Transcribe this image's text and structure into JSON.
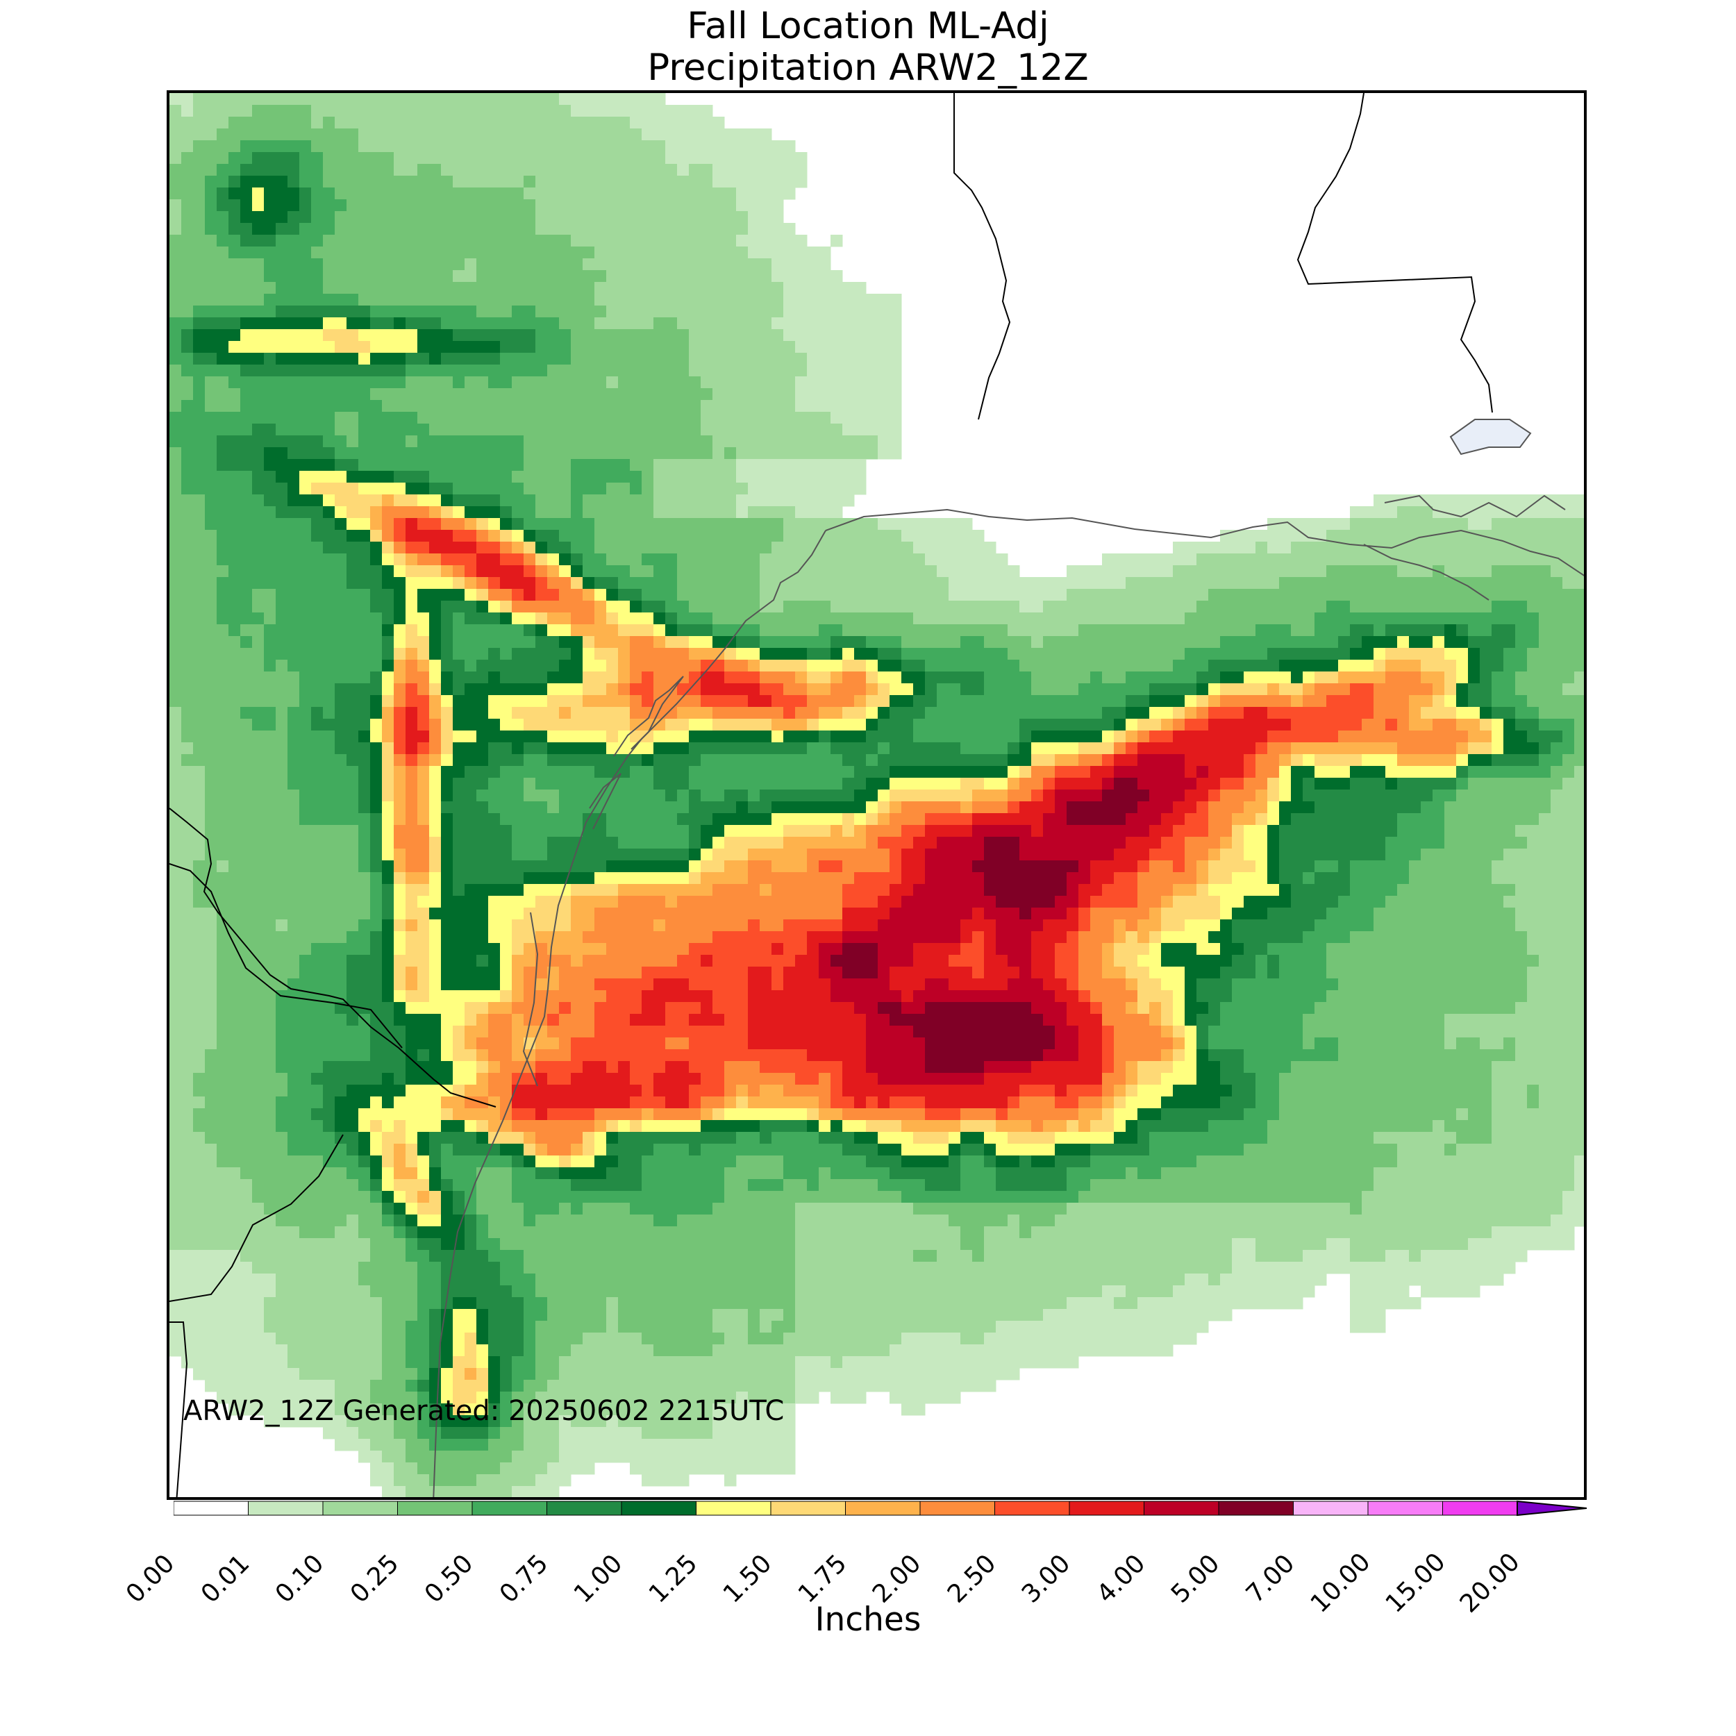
{
  "title_line1": "Fall Location ML-Adj",
  "title_line2": "Precipitation ARW2_12Z",
  "generated_text": "ARW2_12Z Generated: 20250602 2215UTC",
  "colorbar": {
    "label": "Inches",
    "ticks": [
      "0.00",
      "0.01",
      "0.10",
      "0.25",
      "0.50",
      "0.75",
      "1.00",
      "1.25",
      "1.50",
      "1.75",
      "2.00",
      "2.50",
      "3.00",
      "4.00",
      "5.00",
      "7.00",
      "10.00",
      "15.00",
      "20.00"
    ],
    "colors": [
      "#ffffff",
      "#c7e9c0",
      "#a1d99b",
      "#74c476",
      "#41ab5d",
      "#238b45",
      "#006d2c",
      "#ffff80",
      "#fed976",
      "#feb24c",
      "#fd8d3c",
      "#fc4e2a",
      "#e31a1c",
      "#bd0026",
      "#800026",
      "#f8b4f8",
      "#f77cf7",
      "#f03cf0",
      "#e01ae0",
      "#b400d8"
    ],
    "extend_color": "#7b00c8"
  },
  "legend_colors": {
    "land_border": "#000000",
    "coastline": "#444444",
    "water": "#e8eef8"
  }
}
